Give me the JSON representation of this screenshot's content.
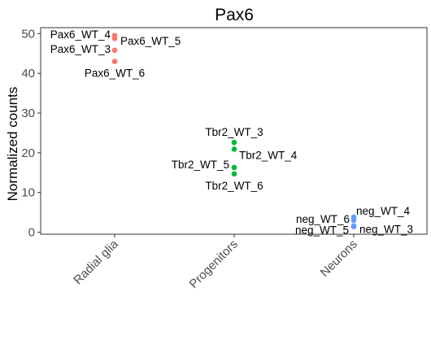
{
  "chart_data": {
    "type": "scatter",
    "title": "Pax6",
    "xlabel": "",
    "ylabel": "Normalized counts",
    "categories": [
      "Radial glia",
      "Progenitors",
      "Neurons"
    ],
    "ylim": [
      -0.5,
      51.5
    ],
    "yticks": [
      0,
      10,
      20,
      30,
      40,
      50
    ],
    "grid": false,
    "legend": "none",
    "series": [
      {
        "color": "#F8766D",
        "category": "Radial glia",
        "points": [
          {
            "label": "Pax6_WT_4",
            "y": 49.5,
            "label_side": "left"
          },
          {
            "label": "Pax6_WT_5",
            "y": 48.8,
            "label_side": "right"
          },
          {
            "label": "Pax6_WT_3",
            "y": 45.8,
            "label_side": "left"
          },
          {
            "label": "Pax6_WT_6",
            "y": 43.0,
            "label_side": "below"
          }
        ]
      },
      {
        "color": "#00BA38",
        "category": "Progenitors",
        "points": [
          {
            "label": "Tbr2_WT_3",
            "y": 22.6,
            "label_side": "above"
          },
          {
            "label": "Tbr2_WT_4",
            "y": 20.9,
            "label_side": "lower-right"
          },
          {
            "label": "Tbr2_WT_5",
            "y": 16.3,
            "label_side": "upper-left"
          },
          {
            "label": "Tbr2_WT_6",
            "y": 14.7,
            "label_side": "below"
          }
        ]
      },
      {
        "color": "#619CFF",
        "category": "Neurons",
        "points": [
          {
            "label": "neg_WT_4",
            "y": 3.8,
            "label_side": "upper-right"
          },
          {
            "label": "neg_WT_6",
            "y": 3.0,
            "label_side": "left"
          },
          {
            "label": "neg_WT_5",
            "y": 1.6,
            "label_side": "lower-left"
          },
          {
            "label": "neg_WT_3",
            "y": 1.4,
            "label_side": "right"
          }
        ]
      }
    ]
  }
}
